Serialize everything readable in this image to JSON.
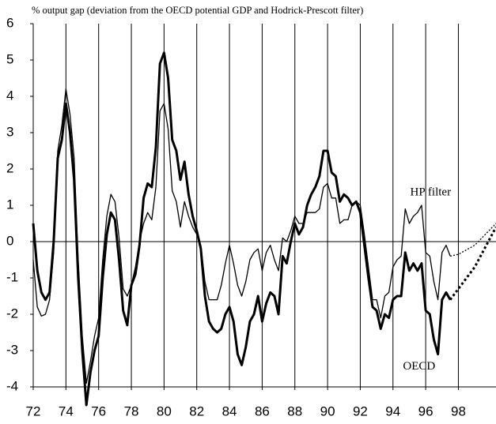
{
  "chart_data": {
    "type": "line",
    "title": "% output gap (deviation from the OECD potential GDP and Hodrick-Prescott filter)",
    "x": [
      72,
      72.25,
      72.5,
      72.75,
      73,
      73.25,
      73.5,
      73.75,
      74,
      74.25,
      74.5,
      74.75,
      75,
      75.25,
      75.5,
      75.75,
      76,
      76.25,
      76.5,
      76.75,
      77,
      77.25,
      77.5,
      77.75,
      78,
      78.25,
      78.5,
      78.75,
      79,
      79.25,
      79.5,
      79.75,
      80,
      80.25,
      80.5,
      80.75,
      81,
      81.25,
      81.5,
      81.75,
      82,
      82.25,
      82.5,
      82.75,
      83,
      83.25,
      83.5,
      83.75,
      84,
      84.25,
      84.5,
      84.75,
      85,
      85.25,
      85.5,
      85.75,
      86,
      86.25,
      86.5,
      86.75,
      87,
      87.25,
      87.5,
      87.75,
      88,
      88.25,
      88.5,
      88.75,
      89,
      89.25,
      89.5,
      89.75,
      90,
      90.25,
      90.5,
      90.75,
      91,
      91.25,
      91.5,
      91.75,
      92,
      92.25,
      92.5,
      92.75,
      93,
      93.25,
      93.5,
      93.75,
      94,
      94.25,
      94.5,
      94.75,
      95,
      95.25,
      95.5,
      95.75,
      96,
      96.25,
      96.5,
      96.75,
      97,
      97.25,
      97.5
    ],
    "series": [
      {
        "color": "#000000",
        "width": 3,
        "values": [
          0.5,
          -0.8,
          -1.4,
          -1.6,
          -1.4,
          0.0,
          2.3,
          2.8,
          3.8,
          3.0,
          1.7,
          -1.0,
          -3.0,
          -4.5,
          -3.6,
          -3.0,
          -2.6,
          -1.0,
          0.2,
          0.8,
          0.6,
          -0.5,
          -1.9,
          -2.3,
          -1.2,
          -0.9,
          -0.1,
          1.2,
          1.6,
          1.5,
          2.6,
          4.9,
          5.2,
          4.5,
          2.8,
          2.5,
          1.7,
          2.2,
          1.3,
          0.7,
          0.3,
          -0.2,
          -1.5,
          -2.2,
          -2.4,
          -2.5,
          -2.4,
          -2.0,
          -1.8,
          -2.2,
          -3.1,
          -3.4,
          -2.9,
          -2.2,
          -2.0,
          -1.5,
          -2.2,
          -1.7,
          -1.4,
          -1.5,
          -2.0,
          -0.4,
          -0.6,
          0.0,
          0.5,
          0.2,
          0.4,
          1.0,
          1.3,
          1.5,
          1.8,
          2.5,
          2.5,
          1.9,
          1.8,
          1.1,
          1.3,
          1.2,
          1.0,
          1.1,
          0.8,
          -0.1,
          -1.0,
          -1.8,
          -1.9,
          -2.4,
          -2.0,
          -2.1,
          -1.6,
          -1.5,
          -1.5,
          -0.3,
          -0.8,
          -0.6,
          -0.8,
          -0.6,
          -1.9,
          -2.0,
          -2.7,
          -3.1,
          -1.6,
          -1.4,
          -1.6
        ],
        "projection_x": [
          97.5,
          98,
          99,
          100.3
        ],
        "projection_values": [
          -1.6,
          -1.3,
          -0.7,
          0.4
        ]
      },
      {
        "color": "#000000",
        "width": 1.3,
        "values": [
          -0.5,
          -1.8,
          -2.05,
          -2.0,
          -1.6,
          -0.3,
          2.5,
          3.2,
          4.2,
          3.5,
          2.3,
          -0.5,
          -2.6,
          -3.9,
          -3.3,
          -2.6,
          -2.1,
          -0.5,
          0.7,
          1.3,
          1.1,
          0.1,
          -1.3,
          -1.5,
          -1.2,
          -0.7,
          0.0,
          0.5,
          0.8,
          0.6,
          1.5,
          3.6,
          3.8,
          3.1,
          1.4,
          1.1,
          0.4,
          1.1,
          0.7,
          0.4,
          0.2,
          -0.1,
          -1.1,
          -1.6,
          -1.6,
          -1.6,
          -1.2,
          -0.6,
          -0.1,
          -0.6,
          -1.2,
          -1.5,
          -1.1,
          -0.5,
          -0.3,
          -0.2,
          -0.8,
          -0.3,
          -0.1,
          -0.5,
          -0.8,
          0.1,
          0.0,
          0.3,
          0.7,
          0.5,
          0.5,
          0.8,
          0.8,
          0.8,
          0.9,
          1.5,
          1.6,
          1.2,
          1.2,
          0.5,
          0.6,
          0.6,
          1.0,
          1.1,
          1.0,
          0.2,
          -0.7,
          -1.6,
          -1.6,
          -2.1,
          -1.5,
          -1.4,
          -0.7,
          -0.5,
          -0.4,
          0.9,
          0.5,
          0.7,
          0.8,
          1.0,
          -0.3,
          -0.4,
          -1.1,
          -1.6,
          -0.3,
          -0.1,
          -0.4
        ],
        "projection_x": [
          97.5,
          98,
          99,
          100.3
        ],
        "projection_values": [
          -0.4,
          -0.35,
          -0.1,
          0.5
        ]
      }
    ],
    "annotations": [
      {
        "text": "HP filter",
        "x": 96.3,
        "y": 1.35
      },
      {
        "text": "OECD",
        "x": 95.6,
        "y": -3.45
      }
    ],
    "xlim": [
      72,
      100.3
    ],
    "ylim": [
      -4,
      6
    ],
    "xticks": [
      72,
      74,
      76,
      78,
      80,
      82,
      84,
      86,
      88,
      90,
      92,
      94,
      96,
      98
    ],
    "yticks": [
      -4,
      -3,
      -2,
      -1,
      0,
      1,
      2,
      3,
      4,
      5,
      6
    ],
    "grid_x": true,
    "zero_line": true
  }
}
